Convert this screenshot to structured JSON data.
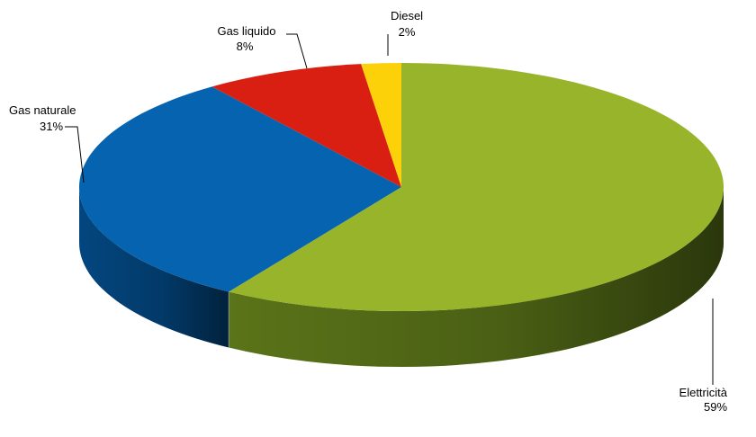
{
  "chart_data": {
    "type": "pie",
    "style": "3d",
    "title": "",
    "slices": [
      {
        "label": "Elettricità",
        "value": 59,
        "value_label": "59%",
        "color": "#97b42b",
        "side_color": "#5f7a1a"
      },
      {
        "label": "Gas naturale",
        "value": 31,
        "value_label": "31%",
        "color": "#0563b0",
        "side_color": "#034a86"
      },
      {
        "label": "Gas liquido",
        "value": 8,
        "value_label": "8%",
        "color": "#d81f12",
        "side_color": "#9a150c"
      },
      {
        "label": "Diesel",
        "value": 2,
        "value_label": "2%",
        "color": "#fcd10a",
        "side_color": "#b89605"
      }
    ]
  }
}
